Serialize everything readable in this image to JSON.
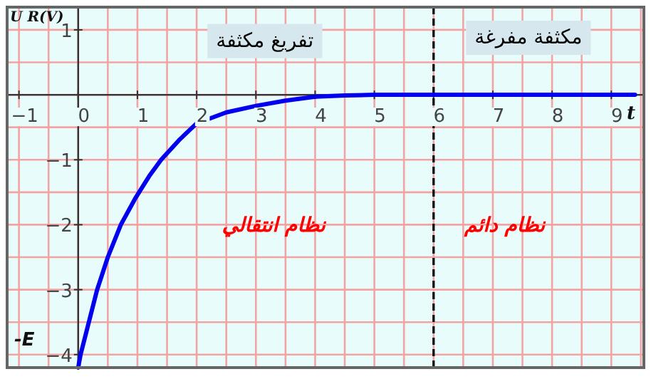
{
  "chart_data": {
    "type": "line",
    "xlabel": "t",
    "ylabel": "U R(V)",
    "xlim": [
      -1.2,
      9.55
    ],
    "ylim": [
      -4.2,
      1.35
    ],
    "xticks": [
      {
        "value": -1,
        "label": "−1"
      },
      0,
      1,
      2,
      3,
      4,
      5,
      6,
      7,
      8,
      9
    ],
    "yticks": [
      {
        "value": -4,
        "label": "−4"
      },
      {
        "value": -3,
        "label": "−3"
      },
      {
        "value": -2,
        "label": "−2"
      },
      {
        "value": -1,
        "label": "−1"
      },
      1
    ],
    "grid": true,
    "series": [
      {
        "color": "#0000ee",
        "x": [
          0,
          0.04,
          0.32,
          0.5,
          0.72,
          0.96,
          1.2,
          1.4,
          1.7,
          2,
          2.5,
          3,
          3.5,
          4,
          4.5,
          5,
          6,
          7,
          8,
          9,
          9.4
        ],
        "values": [
          -4.2,
          -4,
          -3,
          -2.5,
          -2,
          -1.6,
          -1.25,
          -1,
          -0.7,
          -0.44,
          -0.27,
          -0.17,
          -0.09,
          -0.03,
          -0.01,
          0,
          0,
          0,
          0,
          0,
          0
        ]
      }
    ],
    "ref_lines": [
      {
        "axis": "x",
        "value": 6,
        "color": "#000000",
        "line_style": "dashed"
      }
    ],
    "annotations": [
      "تفريغ مكثفة",
      "مكثفة  مفرغة",
      "نظام انتقالي",
      "نظام دائم",
      "-E"
    ]
  }
}
